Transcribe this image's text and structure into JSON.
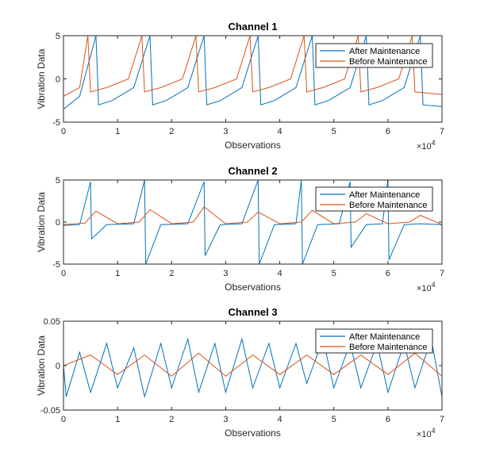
{
  "colors": {
    "after": "#0072BD",
    "before": "#D95319",
    "axis": "#262626"
  },
  "chart_data": [
    {
      "type": "line",
      "title": "Channel 1",
      "xlabel": "Observations",
      "ylabel": "Vibration Data",
      "x_exponent_label": "×10",
      "x_exponent": "4",
      "xlim": [
        0,
        70000
      ],
      "ylim": [
        -5,
        5
      ],
      "x_ticks": [
        0,
        1,
        2,
        3,
        4,
        5,
        6,
        7
      ],
      "y_ticks": [
        -5,
        0,
        5
      ],
      "legend_position": "top-right",
      "grid": false,
      "series": [
        {
          "name": "After Maintenance",
          "color": "#0072BD",
          "x": [
            0,
            3000,
            6000,
            6500,
            9000,
            13000,
            16000,
            16500,
            19000,
            23000,
            26000,
            26500,
            29000,
            33000,
            36000,
            36500,
            39000,
            43000,
            46000,
            46500,
            49000,
            53000,
            56000,
            56500,
            59000,
            63000,
            66000,
            66500,
            70000
          ],
          "y": [
            -3.5,
            -2,
            5,
            -3,
            -2.5,
            -1,
            5,
            -3,
            -2.5,
            -1,
            5,
            -3,
            -2.5,
            -1,
            5,
            -3,
            -2.5,
            -1,
            5,
            -3,
            -2.5,
            -1,
            5,
            -3,
            -2.5,
            -1,
            5,
            -3,
            -3.2
          ]
        },
        {
          "name": "Before Maintenance",
          "color": "#D95319",
          "x": [
            0,
            3000,
            4500,
            5000,
            8000,
            12000,
            14500,
            15000,
            18000,
            22000,
            24500,
            25000,
            28000,
            32000,
            34500,
            35000,
            38000,
            42000,
            44500,
            45000,
            48000,
            52000,
            54500,
            55000,
            58000,
            62000,
            64500,
            65000,
            70000
          ],
          "y": [
            -2,
            -1,
            5,
            -1.5,
            -1,
            0,
            5,
            -1.5,
            -1,
            0,
            5,
            -1.5,
            -1,
            0,
            5,
            -1.5,
            -1,
            0,
            5,
            -1.5,
            -1,
            0,
            5,
            -1.5,
            -1,
            0,
            5,
            -1.5,
            -1.8
          ]
        }
      ]
    },
    {
      "type": "line",
      "title": "Channel 2",
      "xlabel": "Observations",
      "ylabel": "Vibration Data",
      "x_exponent_label": "×10",
      "x_exponent": "4",
      "xlim": [
        0,
        70000
      ],
      "ylim": [
        -5,
        5
      ],
      "x_ticks": [
        0,
        1,
        2,
        3,
        4,
        5,
        6,
        7
      ],
      "y_ticks": [
        -5,
        0,
        5
      ],
      "legend_position": "top-right",
      "grid": false,
      "series": [
        {
          "name": "After Maintenance",
          "color": "#0072BD",
          "x": [
            0,
            3000,
            5000,
            5200,
            8000,
            13000,
            15000,
            15200,
            18000,
            23000,
            26000,
            26200,
            29000,
            33000,
            36000,
            36200,
            39000,
            43000,
            44000,
            44200,
            47000,
            51000,
            53000,
            53200,
            56000,
            59000,
            60000,
            60200,
            63000,
            66000,
            70000
          ],
          "y": [
            -0.4,
            -0.3,
            4.8,
            -2,
            -0.3,
            -0.2,
            5,
            -5,
            -0.3,
            -0.2,
            4.8,
            -4,
            -0.3,
            -0.2,
            5,
            -5,
            -0.3,
            -0.2,
            5,
            -5,
            -0.3,
            -0.2,
            4.8,
            -3,
            -0.3,
            -0.2,
            5,
            -4.5,
            -0.3,
            -0.2,
            -0.3
          ]
        },
        {
          "name": "Before Maintenance",
          "color": "#D95319",
          "x": [
            0,
            4000,
            6000,
            10000,
            14000,
            16000,
            20000,
            24000,
            26000,
            30000,
            34000,
            36000,
            40000,
            44000,
            46000,
            50000,
            54000,
            56000,
            60000,
            64000,
            66000,
            70000
          ],
          "y": [
            -0.3,
            -0.1,
            1.3,
            -0.2,
            0,
            1.5,
            -0.2,
            0,
            1.8,
            -0.2,
            0,
            1.2,
            -0.2,
            0,
            1.4,
            -0.2,
            0,
            1,
            -0.2,
            0,
            0.8,
            -0.3
          ]
        }
      ]
    },
    {
      "type": "line",
      "title": "Channel 3",
      "xlabel": "Observations",
      "ylabel": "Vibration Data",
      "x_exponent_label": "×10",
      "x_exponent": "4",
      "xlim": [
        0,
        70000
      ],
      "ylim": [
        -0.05,
        0.05
      ],
      "x_ticks": [
        0,
        1,
        2,
        3,
        4,
        5,
        6,
        7
      ],
      "y_ticks": [
        -0.05,
        0,
        0.05
      ],
      "legend_position": "top-right",
      "grid": false,
      "series": [
        {
          "name": "After Maintenance",
          "color": "#0072BD",
          "x": [
            0,
            500,
            3000,
            5000,
            8000,
            10000,
            13000,
            15000,
            18000,
            20000,
            23000,
            25000,
            28000,
            30000,
            33000,
            35000,
            38000,
            40000,
            43000,
            45000,
            48000,
            50000,
            53000,
            55000,
            58000,
            60000,
            63000,
            65000,
            68000,
            70000
          ],
          "y": [
            0,
            -0.035,
            0.015,
            -0.03,
            0.025,
            -0.025,
            0.02,
            -0.035,
            0.025,
            -0.025,
            0.03,
            -0.03,
            0.025,
            -0.03,
            0.03,
            -0.025,
            0.025,
            -0.025,
            0.025,
            -0.02,
            0.03,
            -0.025,
            0.025,
            -0.025,
            0.025,
            -0.03,
            0.025,
            -0.025,
            0.03,
            -0.035
          ]
        },
        {
          "name": "Before Maintenance",
          "color": "#D95319",
          "x": [
            0,
            5000,
            10000,
            15000,
            20000,
            25000,
            30000,
            35000,
            40000,
            45000,
            50000,
            55000,
            60000,
            65000,
            70000
          ],
          "y": [
            0,
            0.012,
            -0.01,
            0.012,
            -0.012,
            0.014,
            -0.012,
            0.012,
            -0.01,
            0.012,
            -0.01,
            0.012,
            -0.01,
            0.014,
            -0.012
          ]
        }
      ]
    }
  ]
}
